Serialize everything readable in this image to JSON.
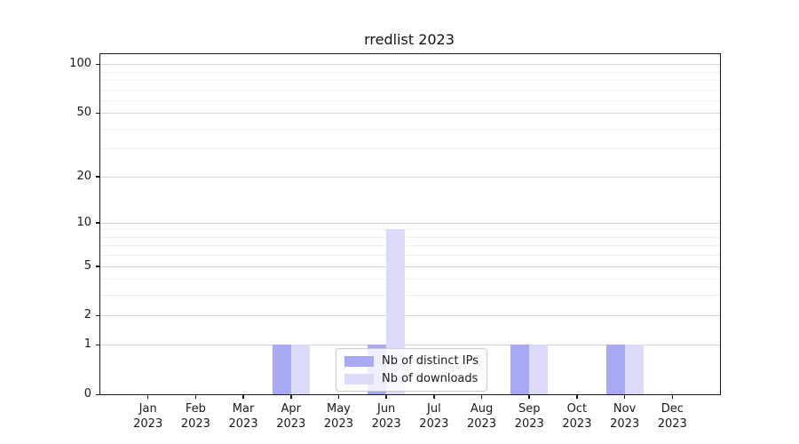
{
  "chart_data": {
    "type": "bar",
    "title": "rredlist 2023",
    "categories": [
      "Jan 2023",
      "Feb 2023",
      "Mar 2023",
      "Apr 2023",
      "May 2023",
      "Jun 2023",
      "Jul 2023",
      "Aug 2023",
      "Sep 2023",
      "Oct 2023",
      "Nov 2023",
      "Dec 2023"
    ],
    "x_tick_months": [
      "Jan",
      "Feb",
      "Mar",
      "Apr",
      "May",
      "Jun",
      "Jul",
      "Aug",
      "Sep",
      "Oct",
      "Nov",
      "Dec"
    ],
    "x_tick_year": "2023",
    "series": [
      {
        "name": "Nb of distinct IPs",
        "color": "#a8a8f5",
        "values": [
          0,
          0,
          0,
          1,
          0,
          1,
          0,
          0,
          1,
          0,
          1,
          0
        ]
      },
      {
        "name": "Nb of downloads",
        "color": "#dbdbf9",
        "values": [
          0,
          0,
          0,
          1,
          0,
          9,
          0,
          0,
          1,
          0,
          1,
          0
        ]
      }
    ],
    "y_scale": "log1p",
    "ylim": [
      0,
      115
    ],
    "y_major_ticks": [
      100,
      50,
      20,
      10,
      5,
      2,
      1,
      0
    ],
    "y_minor_gridlines": [
      3,
      4,
      6,
      7,
      8,
      9,
      30,
      40,
      60,
      70,
      80,
      90
    ],
    "grid": "on",
    "legend_position": "lower center",
    "colors": {
      "major_gridline": "#d6d6d6",
      "minor_gridline": "#efefef",
      "axis": "#1a1a1a",
      "background": "#ffffff"
    }
  }
}
